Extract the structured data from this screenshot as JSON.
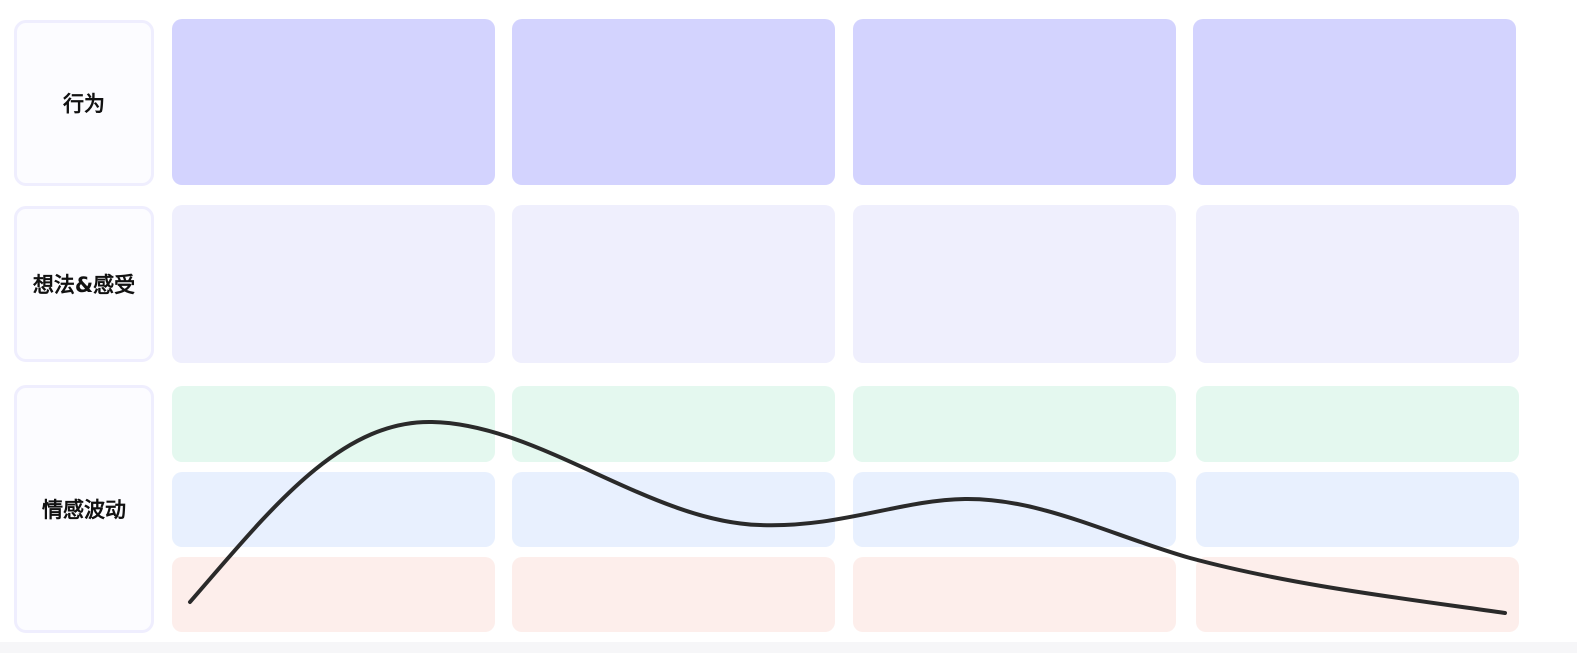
{
  "rows": {
    "behavior": {
      "label": "行为"
    },
    "thoughts": {
      "label": "想法&感受"
    },
    "emotion": {
      "label": "情感波动"
    }
  },
  "colors": {
    "behavior_cell": "#d3d3fe",
    "thought_cell": "#efeffd",
    "positive_band": "#e4f8ef",
    "neutral_band": "#e8f0fe",
    "negative_band": "#fdeeeb",
    "curve": "#2a2a2a",
    "label_border": "#efeefe"
  },
  "emotion_bands": [
    "positive",
    "neutral",
    "negative"
  ]
}
